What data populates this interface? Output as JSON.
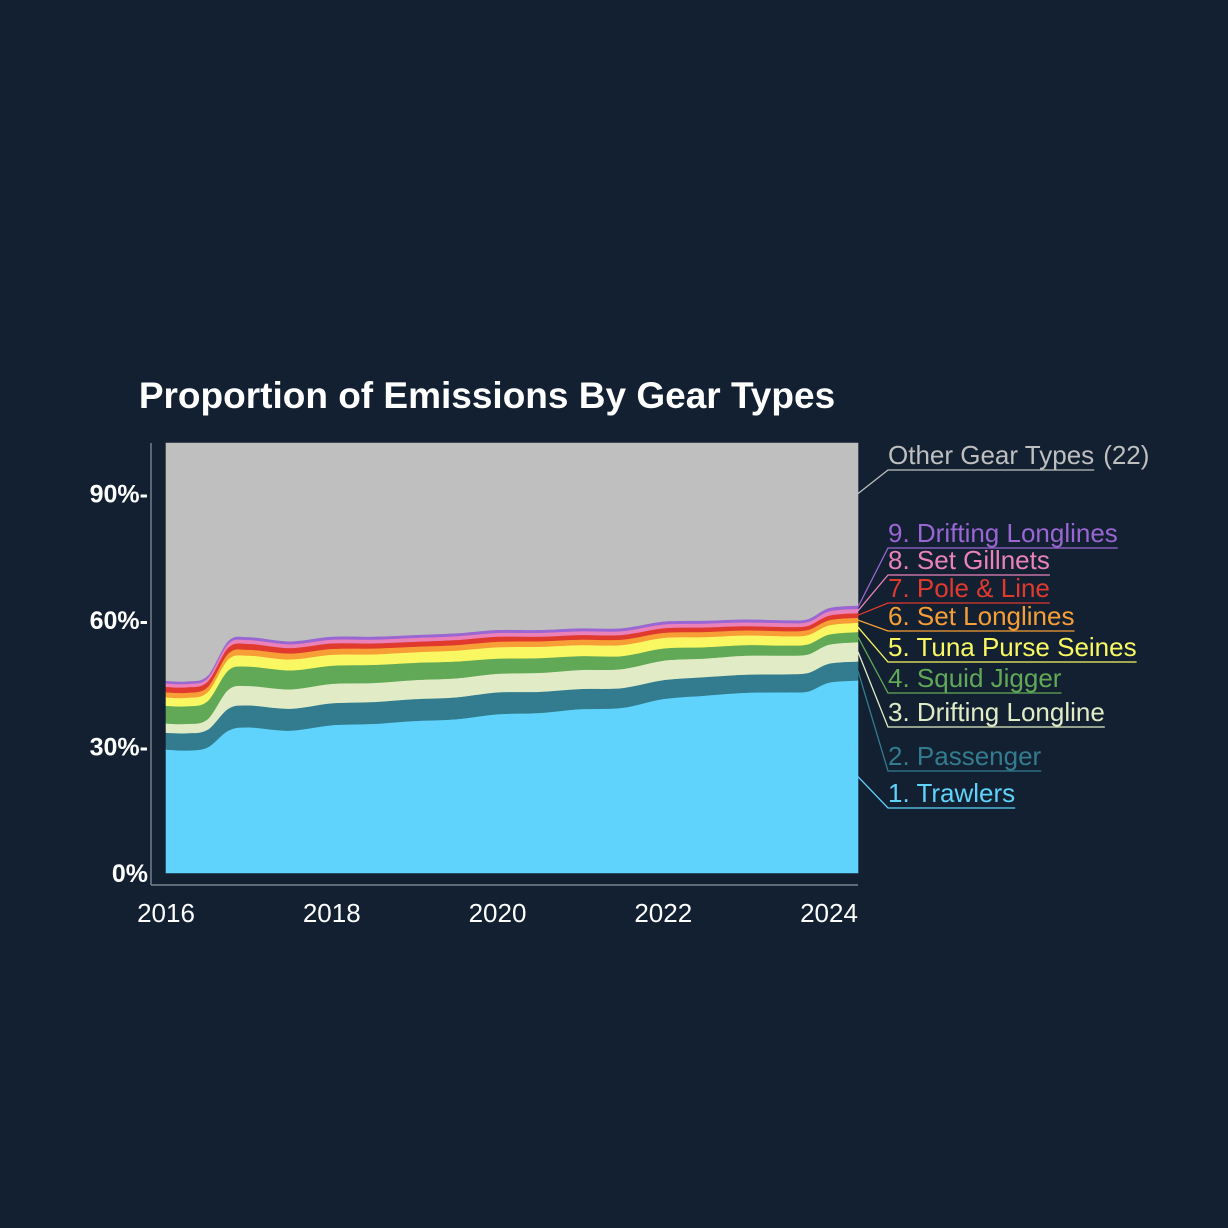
{
  "chart_data": {
    "type": "area",
    "stacked": true,
    "normalized": true,
    "title": "Proportion of Emissions By Gear Types",
    "xlabel": "",
    "ylabel": "",
    "x": [
      2016.0,
      2016.25,
      2016.5,
      2016.75,
      2017.0,
      2017.5,
      2018.0,
      2018.5,
      2019.0,
      2019.5,
      2020.0,
      2020.5,
      2021.0,
      2021.5,
      2022.0,
      2022.5,
      2023.0,
      2023.5,
      2023.75,
      2024.0,
      2024.35
    ],
    "xlim": [
      2016,
      2024.35
    ],
    "x_tick_labels": [
      "2016",
      "2018",
      "2020",
      "2022",
      "2024"
    ],
    "x_tick_values": [
      2016,
      2018,
      2020,
      2022,
      2024
    ],
    "ylim": [
      0,
      1.02
    ],
    "y_tick_labels": [
      "0%",
      "30%-",
      "60%-",
      "90%-"
    ],
    "y_tick_values": [
      0,
      0.3,
      0.6,
      0.9
    ],
    "grid": false,
    "legend": "right, labels at series ends",
    "series": [
      {
        "name": "1. Trawlers",
        "color": "#5fd3fb",
        "values": [
          0.293,
          0.291,
          0.298,
          0.338,
          0.346,
          0.338,
          0.351,
          0.354,
          0.361,
          0.365,
          0.377,
          0.38,
          0.389,
          0.392,
          0.413,
          0.421,
          0.428,
          0.429,
          0.431,
          0.452,
          0.457
        ]
      },
      {
        "name": "2. Passenger",
        "color": "#337c8f",
        "values": [
          0.04,
          0.041,
          0.042,
          0.052,
          0.052,
          0.052,
          0.052,
          0.052,
          0.052,
          0.052,
          0.052,
          0.05,
          0.048,
          0.047,
          0.045,
          0.044,
          0.043,
          0.043,
          0.044,
          0.045,
          0.045
        ]
      },
      {
        "name": "3. Drifting Longline",
        "color": "#e1ecc7",
        "values": [
          0.022,
          0.022,
          0.025,
          0.045,
          0.046,
          0.046,
          0.046,
          0.045,
          0.045,
          0.045,
          0.044,
          0.045,
          0.045,
          0.045,
          0.046,
          0.044,
          0.045,
          0.044,
          0.044,
          0.045,
          0.046
        ]
      },
      {
        "name": "4. Squid Jigger",
        "color": "#62a957",
        "values": [
          0.042,
          0.042,
          0.043,
          0.046,
          0.046,
          0.045,
          0.043,
          0.043,
          0.041,
          0.04,
          0.036,
          0.035,
          0.033,
          0.031,
          0.029,
          0.027,
          0.025,
          0.024,
          0.024,
          0.024,
          0.024
        ]
      },
      {
        "name": "5. Tuna Purse Seines",
        "color": "#faf862",
        "values": [
          0.02,
          0.02,
          0.021,
          0.026,
          0.026,
          0.026,
          0.026,
          0.025,
          0.025,
          0.026,
          0.027,
          0.027,
          0.026,
          0.026,
          0.025,
          0.024,
          0.023,
          0.022,
          0.022,
          0.022,
          0.022
        ]
      },
      {
        "name": "6. Set Longlines",
        "color": "#f79e36",
        "values": [
          0.012,
          0.012,
          0.012,
          0.014,
          0.014,
          0.014,
          0.014,
          0.014,
          0.013,
          0.013,
          0.013,
          0.013,
          0.013,
          0.013,
          0.012,
          0.012,
          0.012,
          0.012,
          0.012,
          0.012,
          0.012
        ]
      },
      {
        "name": "7. Pole & Line",
        "color": "#e03a2f",
        "values": [
          0.013,
          0.013,
          0.013,
          0.014,
          0.014,
          0.013,
          0.013,
          0.012,
          0.012,
          0.012,
          0.012,
          0.011,
          0.011,
          0.011,
          0.011,
          0.011,
          0.01,
          0.01,
          0.01,
          0.011,
          0.011
        ]
      },
      {
        "name": "8. Set Gillnets",
        "color": "#ea82b9",
        "values": [
          0.008,
          0.008,
          0.008,
          0.009,
          0.009,
          0.009,
          0.009,
          0.009,
          0.009,
          0.009,
          0.009,
          0.009,
          0.009,
          0.009,
          0.009,
          0.009,
          0.009,
          0.009,
          0.009,
          0.01,
          0.01
        ]
      },
      {
        "name": "9. Drifting Longlines",
        "color": "#9a66d3",
        "values": [
          0.006,
          0.006,
          0.006,
          0.007,
          0.007,
          0.007,
          0.007,
          0.007,
          0.007,
          0.007,
          0.007,
          0.007,
          0.007,
          0.007,
          0.007,
          0.007,
          0.007,
          0.007,
          0.007,
          0.008,
          0.008
        ]
      },
      {
        "name": "Other Gear Types",
        "name_suffix": "(22)",
        "color": "#bfbfbf",
        "values": [
          0.564,
          0.565,
          0.552,
          0.469,
          0.46,
          0.47,
          0.459,
          0.459,
          0.455,
          0.451,
          0.443,
          0.443,
          0.439,
          0.439,
          0.423,
          0.421,
          0.418,
          0.42,
          0.417,
          0.391,
          0.385
        ]
      }
    ]
  }
}
